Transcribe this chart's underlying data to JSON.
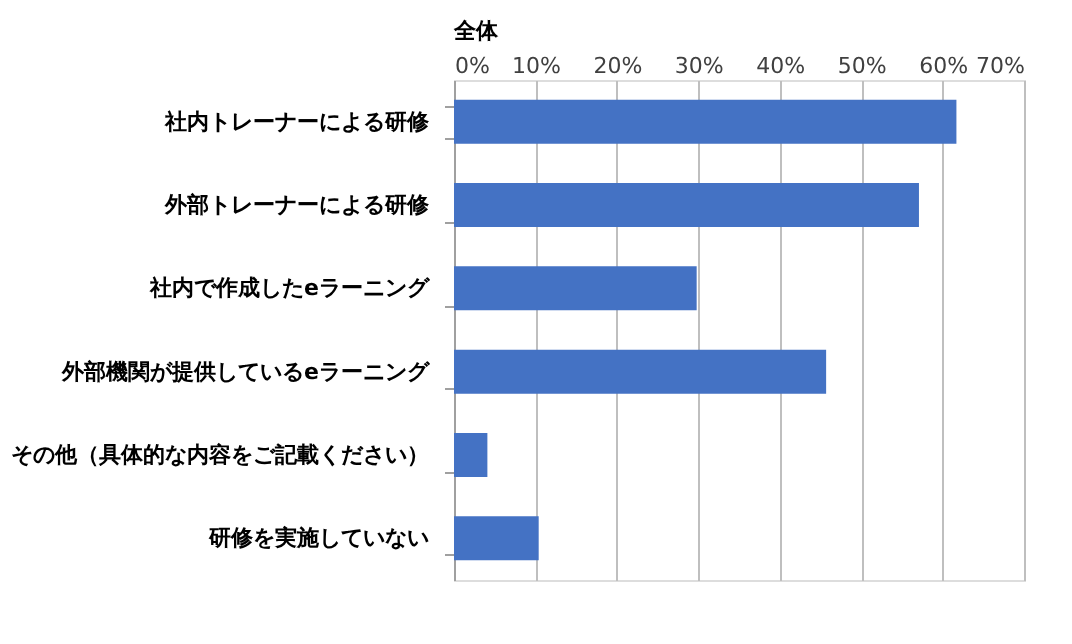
{
  "chart_data": {
    "type": "bar",
    "orientation": "horizontal",
    "title": "全体",
    "categories": [
      "社内トレーナーによる研修",
      "外部トレーナーによる研修",
      "社内で作成したeラーニング",
      "外部機関が提供しているeラーニング",
      "その他（具体的な内容をご記載ください）",
      "研修を実施していない"
    ],
    "values": [
      61.7,
      57.1,
      29.8,
      45.7,
      4.1,
      10.4
    ],
    "color": "#4472c4",
    "xlim": [
      0,
      70
    ],
    "xticks": [
      {
        "value": 0,
        "label": "0%"
      },
      {
        "value": 10,
        "label": "10%"
      },
      {
        "value": 20,
        "label": "20%"
      },
      {
        "value": 30,
        "label": "30%"
      },
      {
        "value": 40,
        "label": "40%"
      },
      {
        "value": 50,
        "label": "50%"
      },
      {
        "value": 60,
        "label": "60%"
      },
      {
        "value": 70,
        "label": "70%"
      }
    ],
    "grid": "x"
  }
}
